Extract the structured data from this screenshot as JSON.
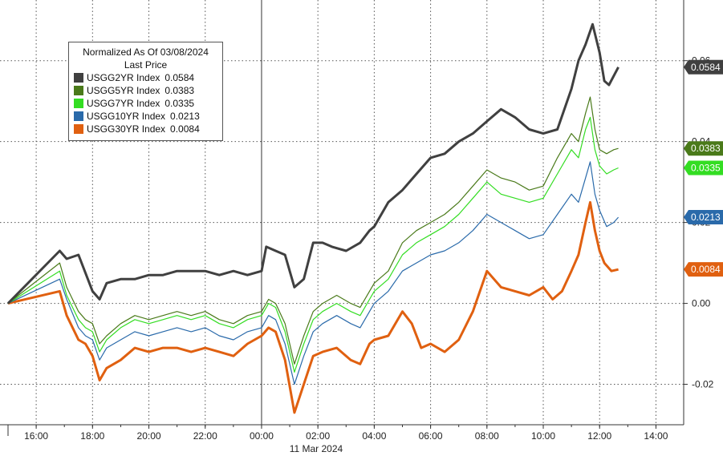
{
  "legend": {
    "title_line1": "Normalized As Of 03/08/2024",
    "title_line2": "Last Price"
  },
  "chart_data": {
    "type": "line",
    "xlim": [
      "15:00",
      "14:30"
    ],
    "ylim": [
      -0.03,
      0.075
    ],
    "date_label": "11 Mar 2024",
    "x_ticks": [
      "16:00",
      "18:00",
      "20:00",
      "22:00",
      "00:00",
      "02:00",
      "04:00",
      "06:00",
      "08:00",
      "10:00",
      "12:00",
      "14:00"
    ],
    "y_ticks": [
      {
        "value": 0.06,
        "label": "0.06"
      },
      {
        "value": 0.04,
        "label": "0.04"
      },
      {
        "value": 0.02,
        "label": "0.02"
      },
      {
        "value": 0.0,
        "label": "0.00"
      },
      {
        "value": -0.02,
        "label": "-0.02"
      }
    ],
    "grid": true,
    "legend_position": "top-left",
    "series": [
      {
        "name": "USGG2YR Index",
        "last": "0.0584",
        "color": "#404040",
        "points": [
          [
            "15:00",
            0.0
          ],
          [
            "16:50",
            0.013
          ],
          [
            "17:05",
            0.011
          ],
          [
            "17:30",
            0.012
          ],
          [
            "18:00",
            0.003
          ],
          [
            "18:15",
            0.001
          ],
          [
            "18:30",
            0.005
          ],
          [
            "19:00",
            0.006
          ],
          [
            "19:30",
            0.006
          ],
          [
            "20:00",
            0.007
          ],
          [
            "20:30",
            0.007
          ],
          [
            "21:00",
            0.008
          ],
          [
            "21:30",
            0.008
          ],
          [
            "22:00",
            0.008
          ],
          [
            "22:30",
            0.007
          ],
          [
            "23:00",
            0.008
          ],
          [
            "23:30",
            0.007
          ],
          [
            "00:00",
            0.008
          ],
          [
            "00:10",
            0.014
          ],
          [
            "00:30",
            0.013
          ],
          [
            "00:50",
            0.012
          ],
          [
            "01:10",
            0.004
          ],
          [
            "01:30",
            0.006
          ],
          [
            "01:50",
            0.015
          ],
          [
            "02:10",
            0.015
          ],
          [
            "02:30",
            0.014
          ],
          [
            "03:00",
            0.013
          ],
          [
            "03:30",
            0.015
          ],
          [
            "03:50",
            0.018
          ],
          [
            "04:00",
            0.019
          ],
          [
            "04:30",
            0.025
          ],
          [
            "05:00",
            0.028
          ],
          [
            "05:30",
            0.032
          ],
          [
            "06:00",
            0.036
          ],
          [
            "06:30",
            0.037
          ],
          [
            "07:00",
            0.04
          ],
          [
            "07:30",
            0.042
          ],
          [
            "08:00",
            0.045
          ],
          [
            "08:30",
            0.048
          ],
          [
            "09:00",
            0.046
          ],
          [
            "09:30",
            0.043
          ],
          [
            "10:00",
            0.042
          ],
          [
            "10:30",
            0.043
          ],
          [
            "11:00",
            0.053
          ],
          [
            "11:15",
            0.06
          ],
          [
            "11:30",
            0.064
          ],
          [
            "11:45",
            0.069
          ],
          [
            "12:00",
            0.062
          ],
          [
            "12:10",
            0.055
          ],
          [
            "12:20",
            0.054
          ],
          [
            "12:40",
            0.0584
          ]
        ]
      },
      {
        "name": "USGG5YR Index",
        "last": "0.0383",
        "color": "#4a7a1a",
        "points": [
          [
            "15:00",
            0.0
          ],
          [
            "16:50",
            0.01
          ],
          [
            "17:05",
            0.004
          ],
          [
            "17:30",
            -0.002
          ],
          [
            "17:45",
            -0.004
          ],
          [
            "18:00",
            -0.005
          ],
          [
            "18:15",
            -0.01
          ],
          [
            "18:30",
            -0.008
          ],
          [
            "19:00",
            -0.005
          ],
          [
            "19:30",
            -0.003
          ],
          [
            "20:00",
            -0.004
          ],
          [
            "20:30",
            -0.003
          ],
          [
            "21:00",
            -0.002
          ],
          [
            "21:30",
            -0.003
          ],
          [
            "22:00",
            -0.002
          ],
          [
            "22:30",
            -0.004
          ],
          [
            "23:00",
            -0.005
          ],
          [
            "23:30",
            -0.003
          ],
          [
            "00:00",
            -0.002
          ],
          [
            "00:15",
            0.001
          ],
          [
            "00:30",
            0.0
          ],
          [
            "00:50",
            -0.005
          ],
          [
            "01:10",
            -0.015
          ],
          [
            "01:30",
            -0.008
          ],
          [
            "01:50",
            -0.002
          ],
          [
            "02:10",
            0.0
          ],
          [
            "02:40",
            0.002
          ],
          [
            "03:10",
            0.0
          ],
          [
            "03:30",
            -0.001
          ],
          [
            "03:50",
            0.003
          ],
          [
            "04:00",
            0.005
          ],
          [
            "04:30",
            0.008
          ],
          [
            "05:00",
            0.015
          ],
          [
            "05:30",
            0.018
          ],
          [
            "06:00",
            0.02
          ],
          [
            "06:30",
            0.022
          ],
          [
            "07:00",
            0.025
          ],
          [
            "07:30",
            0.029
          ],
          [
            "08:00",
            0.033
          ],
          [
            "08:30",
            0.031
          ],
          [
            "09:00",
            0.03
          ],
          [
            "09:30",
            0.028
          ],
          [
            "10:00",
            0.029
          ],
          [
            "10:30",
            0.036
          ],
          [
            "11:00",
            0.042
          ],
          [
            "11:15",
            0.04
          ],
          [
            "11:30",
            0.047
          ],
          [
            "11:40",
            0.051
          ],
          [
            "11:50",
            0.043
          ],
          [
            "12:00",
            0.038
          ],
          [
            "12:15",
            0.037
          ],
          [
            "12:30",
            0.038
          ],
          [
            "12:40",
            0.0383
          ]
        ]
      },
      {
        "name": "USGG7YR Index",
        "last": "0.0335",
        "color": "#33dd22",
        "points": [
          [
            "15:00",
            0.0
          ],
          [
            "16:50",
            0.008
          ],
          [
            "17:05",
            0.002
          ],
          [
            "17:30",
            -0.004
          ],
          [
            "17:45",
            -0.006
          ],
          [
            "18:00",
            -0.007
          ],
          [
            "18:15",
            -0.012
          ],
          [
            "18:30",
            -0.009
          ],
          [
            "19:00",
            -0.006
          ],
          [
            "19:30",
            -0.004
          ],
          [
            "20:00",
            -0.005
          ],
          [
            "20:30",
            -0.004
          ],
          [
            "21:00",
            -0.003
          ],
          [
            "21:30",
            -0.004
          ],
          [
            "22:00",
            -0.003
          ],
          [
            "22:30",
            -0.005
          ],
          [
            "23:00",
            -0.006
          ],
          [
            "23:30",
            -0.004
          ],
          [
            "00:00",
            -0.003
          ],
          [
            "00:15",
            0.0
          ],
          [
            "00:30",
            -0.001
          ],
          [
            "00:50",
            -0.007
          ],
          [
            "01:10",
            -0.017
          ],
          [
            "01:30",
            -0.01
          ],
          [
            "01:50",
            -0.004
          ],
          [
            "02:10",
            -0.002
          ],
          [
            "02:40",
            0.0
          ],
          [
            "03:10",
            -0.002
          ],
          [
            "03:30",
            -0.003
          ],
          [
            "03:50",
            0.001
          ],
          [
            "04:00",
            0.003
          ],
          [
            "04:30",
            0.006
          ],
          [
            "05:00",
            0.012
          ],
          [
            "05:30",
            0.015
          ],
          [
            "06:00",
            0.017
          ],
          [
            "06:30",
            0.019
          ],
          [
            "07:00",
            0.022
          ],
          [
            "07:30",
            0.026
          ],
          [
            "08:00",
            0.03
          ],
          [
            "08:30",
            0.027
          ],
          [
            "09:00",
            0.026
          ],
          [
            "09:30",
            0.025
          ],
          [
            "10:00",
            0.026
          ],
          [
            "10:30",
            0.032
          ],
          [
            "11:00",
            0.038
          ],
          [
            "11:15",
            0.036
          ],
          [
            "11:30",
            0.043
          ],
          [
            "11:40",
            0.046
          ],
          [
            "11:50",
            0.038
          ],
          [
            "12:00",
            0.034
          ],
          [
            "12:15",
            0.032
          ],
          [
            "12:30",
            0.033
          ],
          [
            "12:40",
            0.0335
          ]
        ]
      },
      {
        "name": "USGG10YR Index",
        "last": "0.0213",
        "color": "#2a6aaa",
        "points": [
          [
            "15:00",
            0.0
          ],
          [
            "16:50",
            0.006
          ],
          [
            "17:05",
            0.001
          ],
          [
            "17:30",
            -0.006
          ],
          [
            "17:45",
            -0.008
          ],
          [
            "18:00",
            -0.009
          ],
          [
            "18:15",
            -0.014
          ],
          [
            "18:30",
            -0.011
          ],
          [
            "19:00",
            -0.009
          ],
          [
            "19:30",
            -0.007
          ],
          [
            "20:00",
            -0.008
          ],
          [
            "20:30",
            -0.007
          ],
          [
            "21:00",
            -0.006
          ],
          [
            "21:30",
            -0.007
          ],
          [
            "22:00",
            -0.006
          ],
          [
            "22:30",
            -0.008
          ],
          [
            "23:00",
            -0.009
          ],
          [
            "23:30",
            -0.007
          ],
          [
            "00:00",
            -0.006
          ],
          [
            "00:15",
            -0.003
          ],
          [
            "00:30",
            -0.004
          ],
          [
            "00:50",
            -0.01
          ],
          [
            "01:10",
            -0.02
          ],
          [
            "01:30",
            -0.013
          ],
          [
            "01:50",
            -0.007
          ],
          [
            "02:10",
            -0.005
          ],
          [
            "02:40",
            -0.003
          ],
          [
            "03:10",
            -0.005
          ],
          [
            "03:30",
            -0.006
          ],
          [
            "03:50",
            -0.002
          ],
          [
            "04:00",
            0.0
          ],
          [
            "04:30",
            0.003
          ],
          [
            "05:00",
            0.008
          ],
          [
            "05:30",
            0.01
          ],
          [
            "06:00",
            0.012
          ],
          [
            "06:30",
            0.013
          ],
          [
            "07:00",
            0.015
          ],
          [
            "07:30",
            0.018
          ],
          [
            "08:00",
            0.022
          ],
          [
            "08:30",
            0.02
          ],
          [
            "09:00",
            0.018
          ],
          [
            "09:30",
            0.016
          ],
          [
            "10:00",
            0.017
          ],
          [
            "10:30",
            0.022
          ],
          [
            "11:00",
            0.027
          ],
          [
            "11:15",
            0.025
          ],
          [
            "11:30",
            0.031
          ],
          [
            "11:40",
            0.035
          ],
          [
            "11:50",
            0.027
          ],
          [
            "12:00",
            0.023
          ],
          [
            "12:15",
            0.019
          ],
          [
            "12:30",
            0.02
          ],
          [
            "12:40",
            0.0213
          ]
        ]
      },
      {
        "name": "USGG30YR Index",
        "last": "0.0084",
        "color": "#e06010",
        "points": [
          [
            "15:00",
            0.0
          ],
          [
            "16:50",
            0.003
          ],
          [
            "17:05",
            -0.003
          ],
          [
            "17:30",
            -0.009
          ],
          [
            "17:45",
            -0.01
          ],
          [
            "18:00",
            -0.013
          ],
          [
            "18:15",
            -0.019
          ],
          [
            "18:30",
            -0.016
          ],
          [
            "19:00",
            -0.014
          ],
          [
            "19:30",
            -0.011
          ],
          [
            "20:00",
            -0.012
          ],
          [
            "20:30",
            -0.011
          ],
          [
            "21:00",
            -0.011
          ],
          [
            "21:30",
            -0.012
          ],
          [
            "22:00",
            -0.011
          ],
          [
            "22:30",
            -0.012
          ],
          [
            "23:00",
            -0.013
          ],
          [
            "23:30",
            -0.01
          ],
          [
            "00:00",
            -0.008
          ],
          [
            "00:15",
            -0.006
          ],
          [
            "00:30",
            -0.007
          ],
          [
            "00:50",
            -0.014
          ],
          [
            "01:10",
            -0.027
          ],
          [
            "01:30",
            -0.02
          ],
          [
            "01:50",
            -0.013
          ],
          [
            "02:10",
            -0.012
          ],
          [
            "02:40",
            -0.011
          ],
          [
            "03:10",
            -0.014
          ],
          [
            "03:30",
            -0.015
          ],
          [
            "03:50",
            -0.01
          ],
          [
            "04:00",
            -0.009
          ],
          [
            "04:30",
            -0.008
          ],
          [
            "05:00",
            -0.002
          ],
          [
            "05:20",
            -0.005
          ],
          [
            "05:40",
            -0.011
          ],
          [
            "06:00",
            -0.01
          ],
          [
            "06:30",
            -0.012
          ],
          [
            "07:00",
            -0.009
          ],
          [
            "07:30",
            -0.002
          ],
          [
            "08:00",
            0.008
          ],
          [
            "08:30",
            0.004
          ],
          [
            "09:00",
            0.003
          ],
          [
            "09:30",
            0.002
          ],
          [
            "10:00",
            0.004
          ],
          [
            "10:20",
            0.001
          ],
          [
            "10:40",
            0.003
          ],
          [
            "11:00",
            0.008
          ],
          [
            "11:15",
            0.012
          ],
          [
            "11:30",
            0.02
          ],
          [
            "11:40",
            0.025
          ],
          [
            "11:50",
            0.018
          ],
          [
            "12:00",
            0.013
          ],
          [
            "12:10",
            0.01
          ],
          [
            "12:25",
            0.008
          ],
          [
            "12:40",
            0.0084
          ]
        ]
      }
    ]
  }
}
